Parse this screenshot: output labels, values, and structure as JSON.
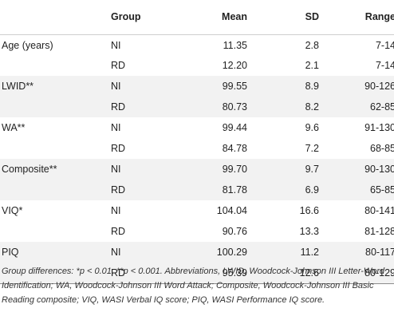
{
  "table": {
    "headers": [
      "",
      "Group",
      "Mean",
      "SD",
      "Range"
    ],
    "rows": [
      {
        "measure": "Age (years)",
        "group": "NI",
        "mean": "11.35",
        "sd": "2.8",
        "range": "7-14"
      },
      {
        "measure": "",
        "group": "RD",
        "mean": "12.20",
        "sd": "2.1",
        "range": "7-14"
      },
      {
        "measure": "LWID**",
        "group": "NI",
        "mean": "99.55",
        "sd": "8.9",
        "range": "90-126"
      },
      {
        "measure": "",
        "group": "RD",
        "mean": "80.73",
        "sd": "8.2",
        "range": "62-85"
      },
      {
        "measure": "WA**",
        "group": "NI",
        "mean": "99.44",
        "sd": "9.6",
        "range": "91-130"
      },
      {
        "measure": "",
        "group": "RD",
        "mean": "84.78",
        "sd": "7.2",
        "range": "68-85"
      },
      {
        "measure": "Composite**",
        "group": "NI",
        "mean": "99.70",
        "sd": "9.7",
        "range": "90-130"
      },
      {
        "measure": "",
        "group": "RD",
        "mean": "81.78",
        "sd": "6.9",
        "range": "65-85"
      },
      {
        "measure": "VIQ*",
        "group": "NI",
        "mean": "104.04",
        "sd": "16.6",
        "range": "80-141"
      },
      {
        "measure": "",
        "group": "RD",
        "mean": "90.76",
        "sd": "13.3",
        "range": "81-128"
      },
      {
        "measure": "PIQ",
        "group": "NI",
        "mean": "100.29",
        "sd": "11.2",
        "range": "80-117"
      },
      {
        "measure": "",
        "group": "RD",
        "mean": "95.39",
        "sd": "12.6",
        "range": "80-129"
      }
    ]
  },
  "footnote": "Group differences: *p < 0.01, **p < 0.001. Abbreviations, LWID, Woodcock-Johnson III Letter-Word Identification; WA, Woodcock-Johnson III Word Attack; Composite, Woodcock-Johnson III Basic Reading composite; VIQ, WASI Verbal IQ score; PIQ, WASI Performance IQ score."
}
